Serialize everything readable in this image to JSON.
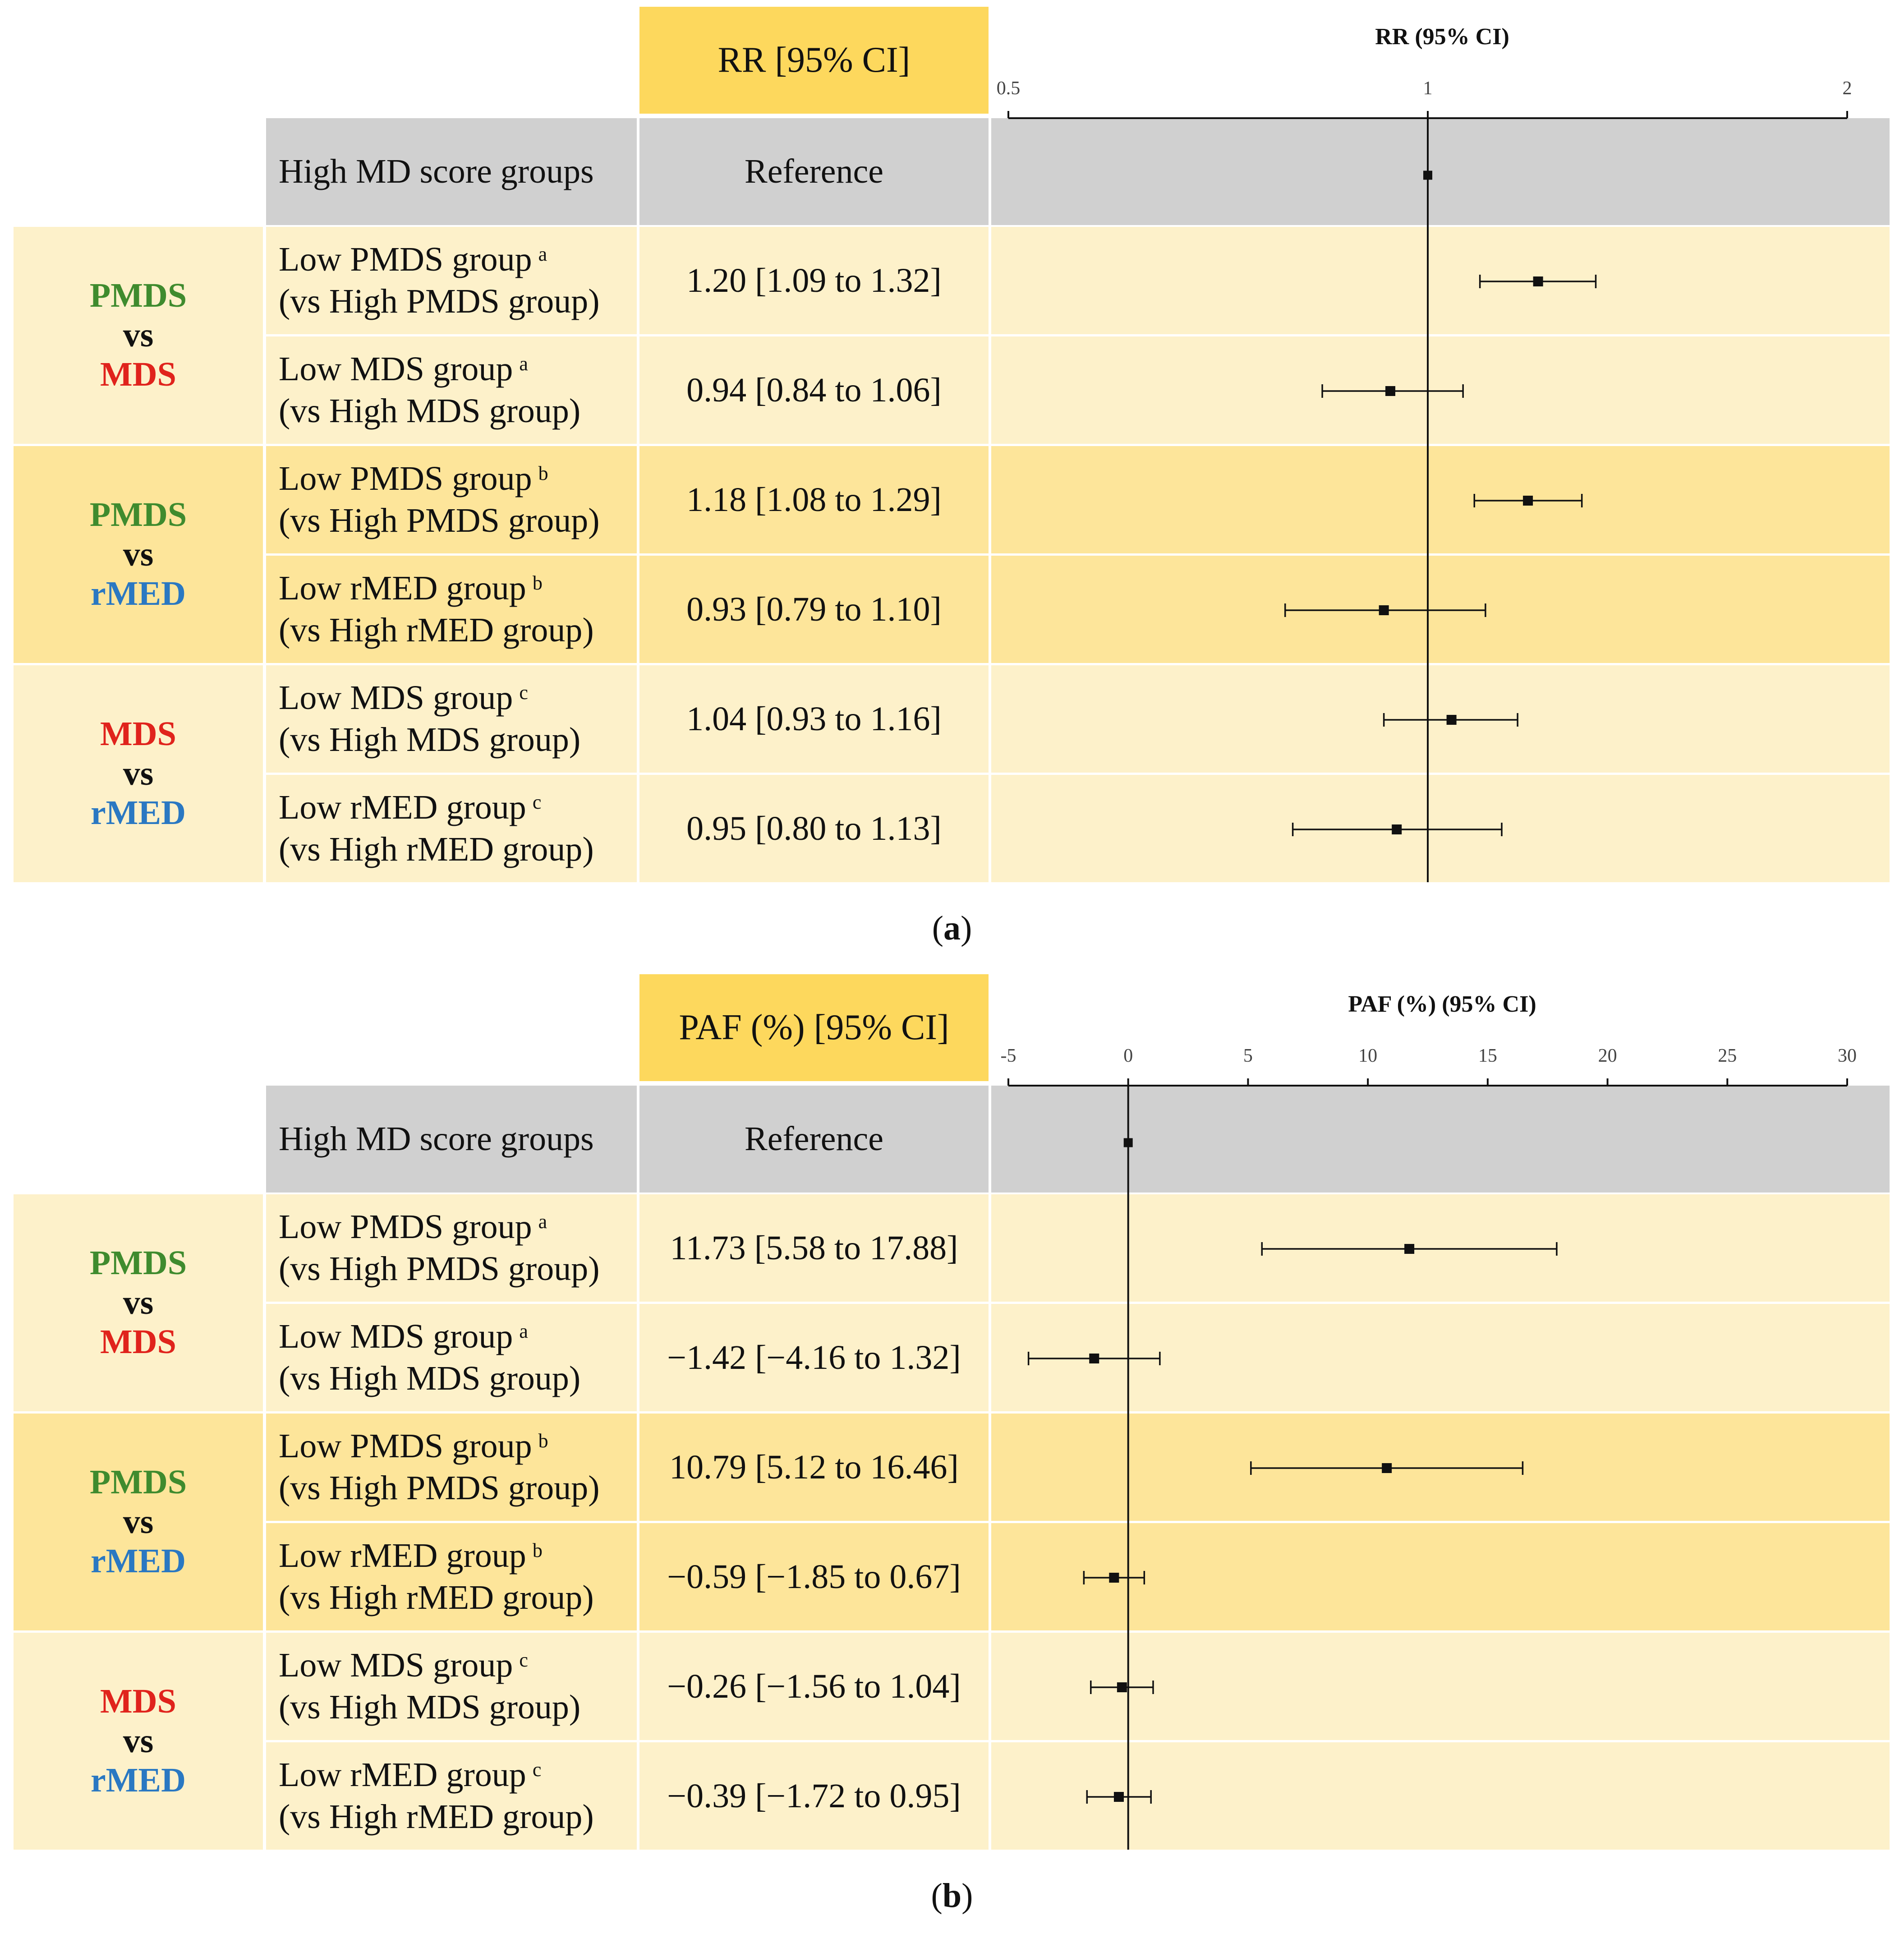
{
  "chart_data": [
    {
      "panel_label": "a",
      "type": "forest",
      "header_value_column": "RR [95% CI]",
      "axis_title": "RR (95% CI)",
      "axis_scale": "log",
      "xlim": [
        0.5,
        2
      ],
      "ticks": [
        0.5,
        1,
        2
      ],
      "tick_labels": [
        "0.5",
        "1",
        "2"
      ],
      "reference_line": 1,
      "reference_row": {
        "label": "High MD score groups",
        "value": "Reference",
        "point": 1
      },
      "groups": [
        {
          "parts": [
            {
              "text": "PMDS",
              "color": "#3f8b2e"
            },
            {
              "text": "vs",
              "color": "#111111"
            },
            {
              "text": "MDS",
              "color": "#e0231c"
            }
          ],
          "rows": [
            {
              "label_line1": "Low PMDS group",
              "sup": "a",
              "label_line2": "(vs High PMDS group)",
              "value": "1.20 [1.09 to 1.32]",
              "point": 1.2,
              "lo": 1.09,
              "hi": 1.32
            },
            {
              "label_line1": "Low MDS group",
              "sup": "a",
              "label_line2": "(vs High MDS group)",
              "value": "0.94 [0.84 to 1.06]",
              "point": 0.94,
              "lo": 0.84,
              "hi": 1.06
            }
          ]
        },
        {
          "parts": [
            {
              "text": "PMDS",
              "color": "#3f8b2e"
            },
            {
              "text": "vs",
              "color": "#111111"
            },
            {
              "text": "rMED",
              "color": "#2a78c2"
            }
          ],
          "rows": [
            {
              "label_line1": "Low PMDS group",
              "sup": "b",
              "label_line2": "(vs High PMDS group)",
              "value": "1.18 [1.08 to 1.29]",
              "point": 1.18,
              "lo": 1.08,
              "hi": 1.29
            },
            {
              "label_line1": "Low rMED group",
              "sup": "b",
              "label_line2": "(vs High rMED group)",
              "value": "0.93 [0.79 to 1.10]",
              "point": 0.93,
              "lo": 0.79,
              "hi": 1.1
            }
          ]
        },
        {
          "parts": [
            {
              "text": "MDS",
              "color": "#e0231c"
            },
            {
              "text": "vs",
              "color": "#111111"
            },
            {
              "text": "rMED",
              "color": "#2a78c2"
            }
          ],
          "rows": [
            {
              "label_line1": "Low MDS group",
              "sup": "c",
              "label_line2": "(vs High MDS group)",
              "value": "1.04 [0.93 to 1.16]",
              "point": 1.04,
              "lo": 0.93,
              "hi": 1.16
            },
            {
              "label_line1": "Low rMED group",
              "sup": "c",
              "label_line2": "(vs High rMED group)",
              "value": "0.95 [0.80 to 1.13]",
              "point": 0.95,
              "lo": 0.8,
              "hi": 1.13
            }
          ]
        }
      ]
    },
    {
      "panel_label": "b",
      "type": "forest",
      "header_value_column": "PAF (%) [95% CI]",
      "axis_title": "PAF (%) (95% CI)",
      "axis_scale": "linear",
      "xlim": [
        -5,
        30
      ],
      "ticks": [
        -5,
        0,
        5,
        10,
        15,
        20,
        25,
        30
      ],
      "tick_labels": [
        "-5",
        "0",
        "5",
        "10",
        "15",
        "20",
        "25",
        "30"
      ],
      "reference_line": 0,
      "reference_row": {
        "label": "High MD score groups",
        "value": "Reference",
        "point": 0
      },
      "groups": [
        {
          "parts": [
            {
              "text": "PMDS",
              "color": "#3f8b2e"
            },
            {
              "text": "vs",
              "color": "#111111"
            },
            {
              "text": "MDS",
              "color": "#e0231c"
            }
          ],
          "rows": [
            {
              "label_line1": "Low PMDS group",
              "sup": "a",
              "label_line2": "(vs High PMDS group)",
              "value": "11.73 [5.58 to 17.88]",
              "point": 11.73,
              "lo": 5.58,
              "hi": 17.88
            },
            {
              "label_line1": "Low MDS group",
              "sup": "a",
              "label_line2": "(vs High MDS group)",
              "value": "−1.42 [−4.16 to 1.32]",
              "point": -1.42,
              "lo": -4.16,
              "hi": 1.32
            }
          ]
        },
        {
          "parts": [
            {
              "text": "PMDS",
              "color": "#3f8b2e"
            },
            {
              "text": "vs",
              "color": "#111111"
            },
            {
              "text": "rMED",
              "color": "#2a78c2"
            }
          ],
          "rows": [
            {
              "label_line1": "Low PMDS group",
              "sup": "b",
              "label_line2": "(vs High PMDS group)",
              "value": "10.79 [5.12 to 16.46]",
              "point": 10.79,
              "lo": 5.12,
              "hi": 16.46
            },
            {
              "label_line1": "Low rMED group",
              "sup": "b",
              "label_line2": "(vs High rMED group)",
              "value": "−0.59 [−1.85 to 0.67]",
              "point": -0.59,
              "lo": -1.85,
              "hi": 0.67
            }
          ]
        },
        {
          "parts": [
            {
              "text": "MDS",
              "color": "#e0231c"
            },
            {
              "text": "vs",
              "color": "#111111"
            },
            {
              "text": "rMED",
              "color": "#2a78c2"
            }
          ],
          "rows": [
            {
              "label_line1": "Low MDS group",
              "sup": "c",
              "label_line2": "(vs High MDS group)",
              "value": "−0.26 [−1.56 to 1.04]",
              "point": -0.26,
              "lo": -1.56,
              "hi": 1.04
            },
            {
              "label_line1": "Low rMED group",
              "sup": "c",
              "label_line2": "(vs High rMED group)",
              "value": "−0.39 [−1.72 to 0.95]",
              "point": -0.39,
              "lo": -1.72,
              "hi": 0.95
            }
          ]
        }
      ]
    }
  ]
}
